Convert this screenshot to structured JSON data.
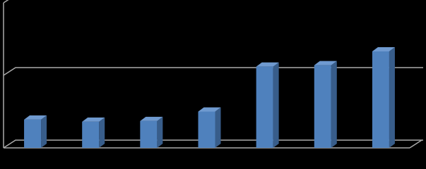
{
  "chart_data": {
    "type": "bar3d",
    "categories": [
      null,
      null,
      null,
      null,
      null,
      null,
      null
    ],
    "values": [
      0.39,
      0.36,
      0.37,
      0.5,
      1.12,
      1.14,
      1.33
    ],
    "color": "#4f81bd",
    "side_color": "#385d8a",
    "top_color": "#6f9ad0",
    "ylim": [
      0,
      2
    ],
    "yticks": [
      0,
      1,
      2
    ],
    "grid": true
  }
}
